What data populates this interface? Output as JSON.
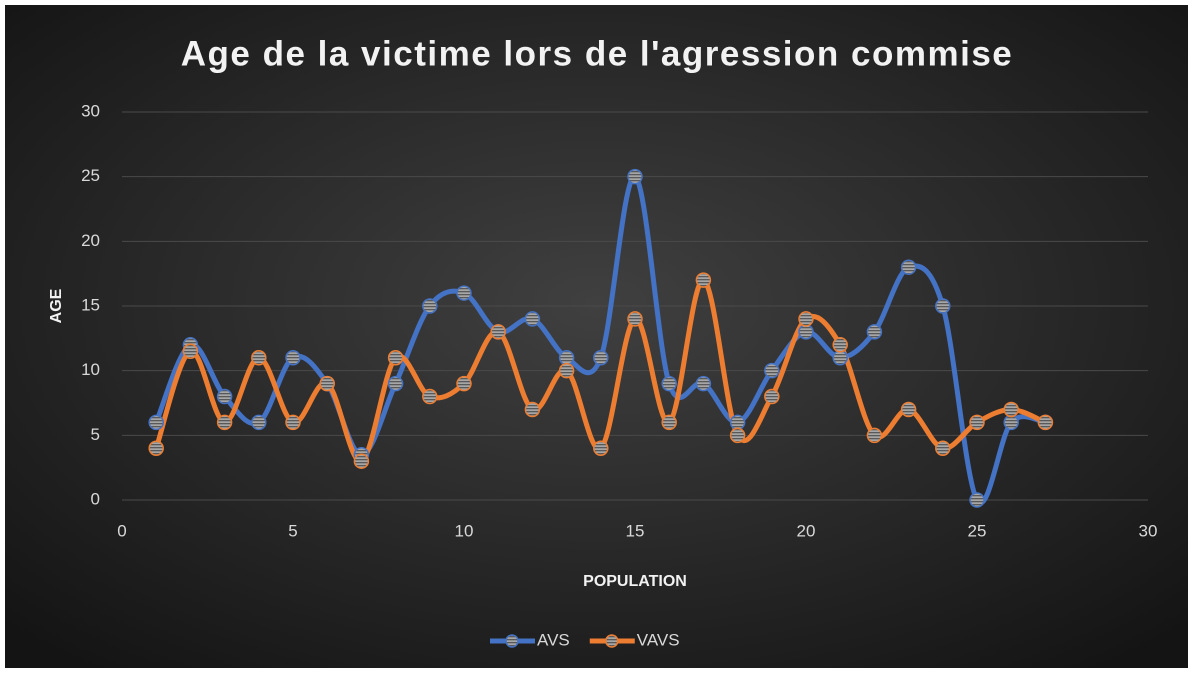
{
  "chart_data": {
    "type": "scatter",
    "smooth": true,
    "title": "Age de la victime lors de l'agression commise",
    "x_label": "POPULATION",
    "y_label": "AGE",
    "x": [
      1,
      2,
      3,
      4,
      5,
      6,
      7,
      8,
      9,
      10,
      11,
      12,
      13,
      14,
      15,
      16,
      17,
      18,
      19,
      20,
      21,
      22,
      23,
      24,
      25,
      26,
      27
    ],
    "series": [
      {
        "name": "AVS",
        "color": "#4472c4",
        "values": [
          6,
          12,
          8,
          6,
          11,
          9,
          3.5,
          9,
          15,
          16,
          13,
          14,
          11,
          11,
          25,
          9,
          9,
          6,
          10,
          13,
          11,
          13,
          18,
          15,
          0,
          6,
          6
        ]
      },
      {
        "name": "VAVS",
        "color": "#ed7d31",
        "values": [
          4,
          11.5,
          6,
          11,
          6,
          9,
          3,
          11,
          8,
          9,
          13,
          7,
          10,
          4,
          14,
          6,
          17,
          5,
          8,
          14,
          12,
          5,
          7,
          4,
          6,
          7,
          6
        ]
      }
    ],
    "xlim": [
      0,
      30
    ],
    "xticks": [
      0,
      5,
      10,
      15,
      20,
      25,
      30
    ],
    "ylim": [
      0,
      30
    ],
    "yticks": [
      0,
      5,
      10,
      15,
      20,
      25,
      30
    ],
    "grid": true,
    "legend": "bottom"
  }
}
